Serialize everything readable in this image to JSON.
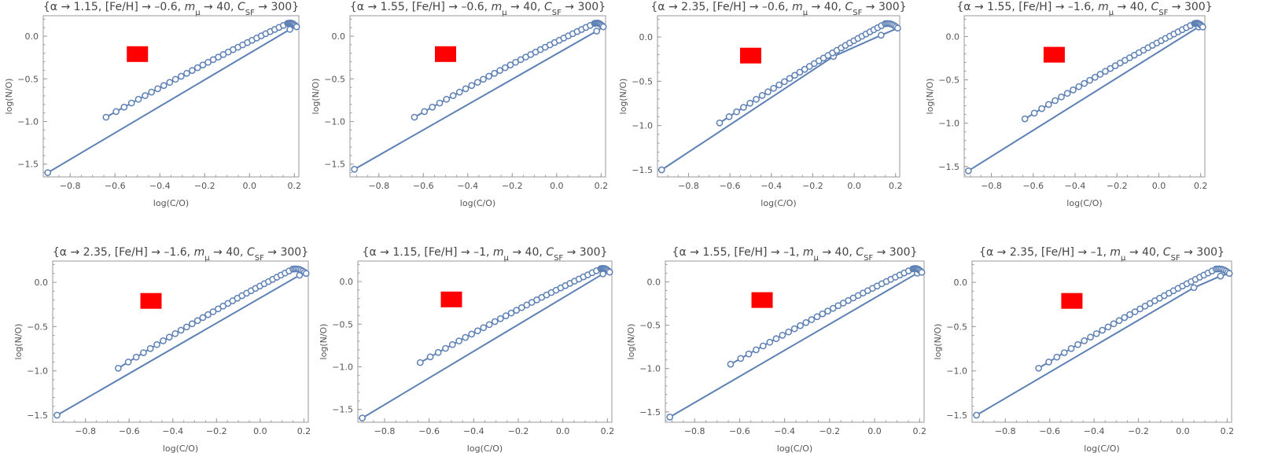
{
  "colors": {
    "series": "#5e81b5",
    "marker_fill": "#ffffff",
    "observation": "#ff0000",
    "axis": "#9a9a9a",
    "text": "#444444"
  },
  "chart_data": [
    {
      "type": "scatter",
      "title": "{α → 1.15, [Fe/H] → –0.6, m_μ → 40, C_SF → 300}",
      "title_parts": {
        "alpha": "1.15",
        "feh": "–0.6",
        "mmu": "40",
        "csf": "300"
      },
      "xlabel": "log(C/O)",
      "ylabel": "log(N/O)",
      "xlim": [
        -0.92,
        0.22
      ],
      "ylim": [
        -1.65,
        0.24
      ],
      "xticks": [
        -0.8,
        -0.6,
        -0.4,
        -0.2,
        0.0,
        0.2
      ],
      "yticks": [
        -1.5,
        -1.0,
        -0.5,
        0.0
      ],
      "start": [
        -0.9,
        -1.6
      ],
      "curve_start": [
        -0.64,
        -0.95
      ],
      "curve_mid": [
        -0.2,
        -0.3
      ],
      "curve_peak": [
        0.17,
        0.15
      ],
      "curve_end": [
        0.21,
        0.11
      ],
      "corner": [
        0.18,
        0.08
      ],
      "kink": null,
      "observation": [
        -0.5,
        -0.21
      ]
    },
    {
      "type": "scatter",
      "title": "{α → 1.55, [Fe/H] → –0.6, m_μ → 40, C_SF → 300}",
      "title_parts": {
        "alpha": "1.55",
        "feh": "–0.6",
        "mmu": "40",
        "csf": "300"
      },
      "xlabel": "log(C/O)",
      "ylabel": "log(N/O)",
      "xlim": [
        -0.93,
        0.22
      ],
      "ylim": [
        -1.65,
        0.24
      ],
      "xticks": [
        -0.8,
        -0.6,
        -0.4,
        -0.2,
        0.0,
        0.2
      ],
      "yticks": [
        -1.5,
        -1.0,
        -0.5,
        0.0
      ],
      "start": [
        -0.91,
        -1.56
      ],
      "curve_start": [
        -0.64,
        -0.95
      ],
      "curve_mid": [
        -0.2,
        -0.3
      ],
      "curve_peak": [
        0.17,
        0.15
      ],
      "curve_end": [
        0.21,
        0.11
      ],
      "corner": [
        0.18,
        0.06
      ],
      "kink": null,
      "observation": [
        -0.5,
        -0.21
      ]
    },
    {
      "type": "scatter",
      "title": "{α → 2.35, [Fe/H] → –0.6, m_μ → 40, C_SF → 300}",
      "title_parts": {
        "alpha": "2.35",
        "feh": "–0.6",
        "mmu": "40",
        "csf": "300"
      },
      "xlabel": "log(C/O)",
      "ylabel": "log(N/O)",
      "xlim": [
        -0.95,
        0.22
      ],
      "ylim": [
        -1.58,
        0.24
      ],
      "xticks": [
        -0.8,
        -0.6,
        -0.4,
        -0.2,
        0.0,
        0.2
      ],
      "yticks": [
        -1.5,
        -1.0,
        -0.5,
        0.0
      ],
      "start": [
        -0.93,
        -1.5
      ],
      "curve_start": [
        -0.65,
        -0.97
      ],
      "curve_mid": [
        -0.2,
        -0.28
      ],
      "curve_peak": [
        0.15,
        0.15
      ],
      "curve_end": [
        0.21,
        0.1
      ],
      "corner": [
        0.13,
        0.02
      ],
      "kink": [
        -0.1,
        -0.22
      ],
      "observation": [
        -0.5,
        -0.21
      ]
    },
    {
      "type": "scatter",
      "title": "{α → 1.55, [Fe/H] → –1.6, m_μ → 40, C_SF → 300}",
      "title_parts": {
        "alpha": "1.55",
        "feh": "–1.6",
        "mmu": "40",
        "csf": "300"
      },
      "xlabel": "log(C/O)",
      "ylabel": "log(N/O)",
      "xlim": [
        -0.93,
        0.22
      ],
      "ylim": [
        -1.62,
        0.24
      ],
      "xticks": [
        -0.8,
        -0.6,
        -0.4,
        -0.2,
        0.0,
        0.2
      ],
      "yticks": [
        -1.5,
        -1.0,
        -0.5,
        0.0
      ],
      "start": [
        -0.91,
        -1.55
      ],
      "curve_start": [
        -0.64,
        -0.95
      ],
      "curve_mid": [
        -0.2,
        -0.3
      ],
      "curve_peak": [
        0.17,
        0.15
      ],
      "curve_end": [
        0.21,
        0.11
      ],
      "corner": [
        0.19,
        0.11
      ],
      "kink": null,
      "observation": [
        -0.5,
        -0.21
      ]
    },
    {
      "type": "scatter",
      "title": "{α → 2.35, [Fe/H] → –1.6, m_μ → 40, C_SF → 300}",
      "title_parts": {
        "alpha": "2.35",
        "feh": "–1.6",
        "mmu": "40",
        "csf": "300"
      },
      "xlabel": "log(C/O)",
      "ylabel": "log(N/O)",
      "xlim": [
        -0.95,
        0.22
      ],
      "ylim": [
        -1.58,
        0.24
      ],
      "xticks": [
        -0.8,
        -0.6,
        -0.4,
        -0.2,
        0.0,
        0.2
      ],
      "yticks": [
        -1.5,
        -1.0,
        -0.5,
        0.0
      ],
      "start": [
        -0.93,
        -1.5
      ],
      "curve_start": [
        -0.65,
        -0.97
      ],
      "curve_mid": [
        -0.2,
        -0.28
      ],
      "curve_peak": [
        0.15,
        0.15
      ],
      "curve_end": [
        0.21,
        0.1
      ],
      "corner": [
        0.18,
        0.08
      ],
      "kink": null,
      "observation": [
        -0.5,
        -0.21
      ]
    },
    {
      "type": "scatter",
      "title": "{α → 1.15, [Fe/H] → –1, m_μ → 40, C_SF → 300}",
      "title_parts": {
        "alpha": "1.15",
        "feh": "–1",
        "mmu": "40",
        "csf": "300"
      },
      "xlabel": "log(C/O)",
      "ylabel": "log(N/O)",
      "xlim": [
        -0.92,
        0.22
      ],
      "ylim": [
        -1.65,
        0.24
      ],
      "xticks": [
        -0.8,
        -0.6,
        -0.4,
        -0.2,
        0.0,
        0.2
      ],
      "yticks": [
        -1.5,
        -1.0,
        -0.5,
        0.0
      ],
      "start": [
        -0.9,
        -1.6
      ],
      "curve_start": [
        -0.64,
        -0.95
      ],
      "curve_mid": [
        -0.2,
        -0.3
      ],
      "curve_peak": [
        0.17,
        0.15
      ],
      "curve_end": [
        0.21,
        0.11
      ],
      "corner": [
        0.18,
        0.09
      ],
      "kink": null,
      "observation": [
        -0.5,
        -0.21
      ]
    },
    {
      "type": "scatter",
      "title": "{α → 1.55, [Fe/H] → –1, m_μ → 40, C_SF → 300}",
      "title_parts": {
        "alpha": "1.55",
        "feh": "–1",
        "mmu": "40",
        "csf": "300"
      },
      "xlabel": "log(C/O)",
      "ylabel": "log(N/O)",
      "xlim": [
        -0.93,
        0.22
      ],
      "ylim": [
        -1.62,
        0.24
      ],
      "xticks": [
        -0.8,
        -0.6,
        -0.4,
        -0.2,
        0.0,
        0.2
      ],
      "yticks": [
        -1.5,
        -1.0,
        -0.5,
        0.0
      ],
      "start": [
        -0.91,
        -1.56
      ],
      "curve_start": [
        -0.64,
        -0.95
      ],
      "curve_mid": [
        -0.2,
        -0.3
      ],
      "curve_peak": [
        0.17,
        0.15
      ],
      "curve_end": [
        0.21,
        0.11
      ],
      "corner": [
        0.19,
        0.1
      ],
      "kink": null,
      "observation": [
        -0.5,
        -0.21
      ]
    },
    {
      "type": "scatter",
      "title": "{α → 2.35, [Fe/H] → –1, m_μ → 40, C_SF → 300}",
      "title_parts": {
        "alpha": "2.35",
        "feh": "–1",
        "mmu": "40",
        "csf": "300"
      },
      "xlabel": "log(C/O)",
      "ylabel": "log(N/O)",
      "xlim": [
        -0.95,
        0.22
      ],
      "ylim": [
        -1.58,
        0.24
      ],
      "xticks": [
        -0.8,
        -0.6,
        -0.4,
        -0.2,
        0.0,
        0.2
      ],
      "yticks": [
        -1.5,
        -1.0,
        -0.5,
        0.0
      ],
      "start": [
        -0.93,
        -1.5
      ],
      "curve_start": [
        -0.65,
        -0.97
      ],
      "curve_mid": [
        -0.2,
        -0.28
      ],
      "curve_peak": [
        0.15,
        0.15
      ],
      "curve_end": [
        0.21,
        0.1
      ],
      "corner": [
        0.17,
        0.07
      ],
      "kink": [
        0.05,
        -0.06
      ],
      "observation": [
        -0.5,
        -0.21
      ]
    }
  ]
}
